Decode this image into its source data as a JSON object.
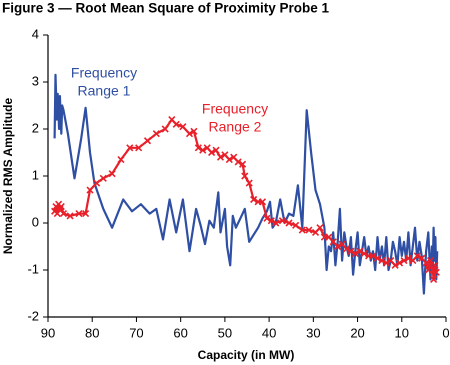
{
  "chart_data": {
    "type": "line",
    "title": "Figure 3 — Root Mean Square of Proximity Probe 1",
    "xlabel": "Capacity (in MW)",
    "ylabel": "Normalized RMS Amplitude",
    "xlim": [
      90,
      0
    ],
    "xticks": [
      90,
      80,
      70,
      60,
      50,
      40,
      30,
      20,
      10,
      0
    ],
    "ylim": [
      -2,
      4
    ],
    "yticks": [
      -2,
      -1,
      0,
      1,
      2,
      3,
      4
    ],
    "grid": false,
    "annotations": [
      {
        "lines": [
          "Frequency",
          "Range 1"
        ],
        "color": "#2e4fa3"
      },
      {
        "lines": [
          "Frequency",
          "Range 2"
        ],
        "color": "#e8202a"
      }
    ],
    "series": [
      {
        "color": "#2e4fa3",
        "marker": "none",
        "x": [
          88.5,
          88.3,
          88.0,
          87.8,
          87.5,
          87.3,
          87.0,
          86.8,
          86.5,
          85.5,
          84.0,
          82.5,
          81.5,
          80.5,
          79.5,
          77.5,
          75.5,
          73.0,
          71.0,
          69.0,
          67.0,
          65.5,
          64.0,
          62.5,
          61.0,
          59.5,
          58.0,
          56.5,
          55.5,
          54.5,
          53.5,
          52.5,
          51.5,
          51.0,
          50.0,
          49.5,
          48.8,
          48.2,
          47.5,
          46.5,
          45.5,
          44.5,
          43.5,
          42.5,
          41.5,
          40.5,
          39.8,
          39.2,
          38.5,
          37.5,
          36.5,
          35.5,
          34.5,
          33.5,
          32.5,
          31.5,
          30.5,
          29.5,
          28.5,
          27.5,
          27.0,
          26.5,
          26.0,
          25.5,
          25.0,
          24.5,
          24.0,
          23.5,
          23.0,
          22.5,
          22.0,
          21.5,
          21.0,
          20.5,
          20.0,
          19.5,
          19.0,
          18.5,
          18.0,
          17.5,
          17.0,
          16.5,
          16.0,
          15.5,
          15.0,
          14.5,
          14.0,
          13.5,
          13.0,
          12.5,
          12.0,
          11.5,
          11.0,
          10.5,
          10.0,
          9.5,
          9.0,
          8.5,
          8.0,
          7.5,
          7.0,
          6.5,
          6.0,
          5.5,
          5.0,
          4.5,
          4.0,
          3.5,
          3.2,
          3.0,
          2.8,
          2.6,
          2.4,
          2.2,
          2.0
        ],
        "values": [
          1.8,
          3.15,
          2.2,
          2.75,
          2.0,
          2.7,
          1.9,
          2.5,
          2.4,
          1.9,
          0.95,
          1.8,
          2.45,
          1.5,
          0.85,
          0.3,
          -0.1,
          0.5,
          0.25,
          0.4,
          0.2,
          0.3,
          -0.35,
          0.5,
          -0.2,
          0.5,
          -0.6,
          0.3,
          -0.05,
          -0.45,
          0.05,
          -0.1,
          0.65,
          -0.2,
          0.3,
          -0.5,
          -0.9,
          0.15,
          -0.1,
          0.1,
          0.3,
          -0.4,
          -0.25,
          -0.1,
          0.1,
          0.25,
          0.45,
          -0.1,
          0.0,
          0.5,
          0.0,
          0.2,
          0.15,
          0.8,
          -0.1,
          2.4,
          1.5,
          0.7,
          0.4,
          -0.1,
          -1.0,
          -0.5,
          -0.6,
          -0.2,
          -0.9,
          -0.4,
          0.3,
          -0.8,
          -0.2,
          -0.5,
          -0.7,
          -0.3,
          -1.1,
          -0.6,
          -0.2,
          -0.9,
          -0.6,
          -0.3,
          -0.7,
          -0.5,
          -0.8,
          -0.6,
          -1.0,
          -0.3,
          -0.8,
          -0.5,
          -0.9,
          -0.3,
          -1.0,
          -0.8,
          -0.4,
          -0.6,
          -0.9,
          -0.3,
          -0.7,
          -0.4,
          -0.8,
          -0.2,
          -0.9,
          -0.5,
          -0.1,
          -0.8,
          -0.4,
          -0.7,
          -1.5,
          -0.6,
          -0.2,
          -1.2,
          -0.5,
          -1.0,
          -0.1,
          -0.8,
          -0.3,
          -1.2,
          -0.6
        ]
      },
      {
        "color": "#e8202a",
        "marker": "x",
        "x": [
          88.5,
          88.2,
          87.9,
          87.6,
          87.3,
          87.0,
          86.5,
          85.0,
          83.0,
          81.5,
          80.5,
          79.0,
          77.5,
          75.5,
          73.5,
          71.5,
          69.5,
          67.5,
          65.5,
          63.5,
          62.0,
          61.0,
          59.5,
          58.0,
          57.0,
          56.0,
          55.0,
          54.0,
          53.0,
          52.0,
          51.0,
          50.0,
          49.0,
          48.0,
          47.0,
          46.0,
          45.5,
          44.5,
          43.5,
          42.5,
          41.5,
          40.5,
          39.5,
          38.5,
          37.0,
          35.5,
          34.0,
          32.5,
          31.0,
          29.5,
          28.5,
          27.5,
          26.5,
          25.5,
          24.5,
          23.5,
          22.5,
          21.5,
          20.5,
          19.5,
          18.5,
          17.5,
          16.5,
          15.5,
          14.5,
          13.5,
          12.5,
          11.5,
          10.5,
          9.5,
          8.5,
          7.5,
          6.5,
          5.5,
          4.5,
          4.0,
          3.5,
          3.0,
          2.8,
          2.5,
          2.2
        ],
        "values": [
          0.25,
          0.35,
          0.2,
          0.4,
          0.3,
          0.35,
          0.2,
          0.15,
          0.2,
          0.2,
          0.7,
          0.85,
          0.95,
          1.05,
          1.35,
          1.6,
          1.6,
          1.75,
          1.9,
          2.0,
          2.2,
          2.1,
          2.05,
          1.9,
          1.95,
          1.6,
          1.55,
          1.6,
          1.5,
          1.55,
          1.4,
          1.45,
          1.35,
          1.4,
          1.3,
          1.25,
          1.0,
          0.85,
          0.5,
          0.45,
          0.45,
          0.1,
          0.05,
          0.0,
          0.05,
          0.0,
          -0.05,
          -0.15,
          -0.15,
          -0.2,
          -0.1,
          -0.3,
          -0.3,
          -0.4,
          -0.5,
          -0.45,
          -0.55,
          -0.6,
          -0.65,
          -0.6,
          -0.65,
          -0.7,
          -0.7,
          -0.75,
          -0.8,
          -0.85,
          -0.8,
          -0.9,
          -0.85,
          -0.8,
          -0.75,
          -0.8,
          -0.7,
          -0.75,
          -0.85,
          -1.0,
          -0.8,
          -1.0,
          -1.2,
          -0.9,
          -1.05
        ]
      }
    ]
  }
}
